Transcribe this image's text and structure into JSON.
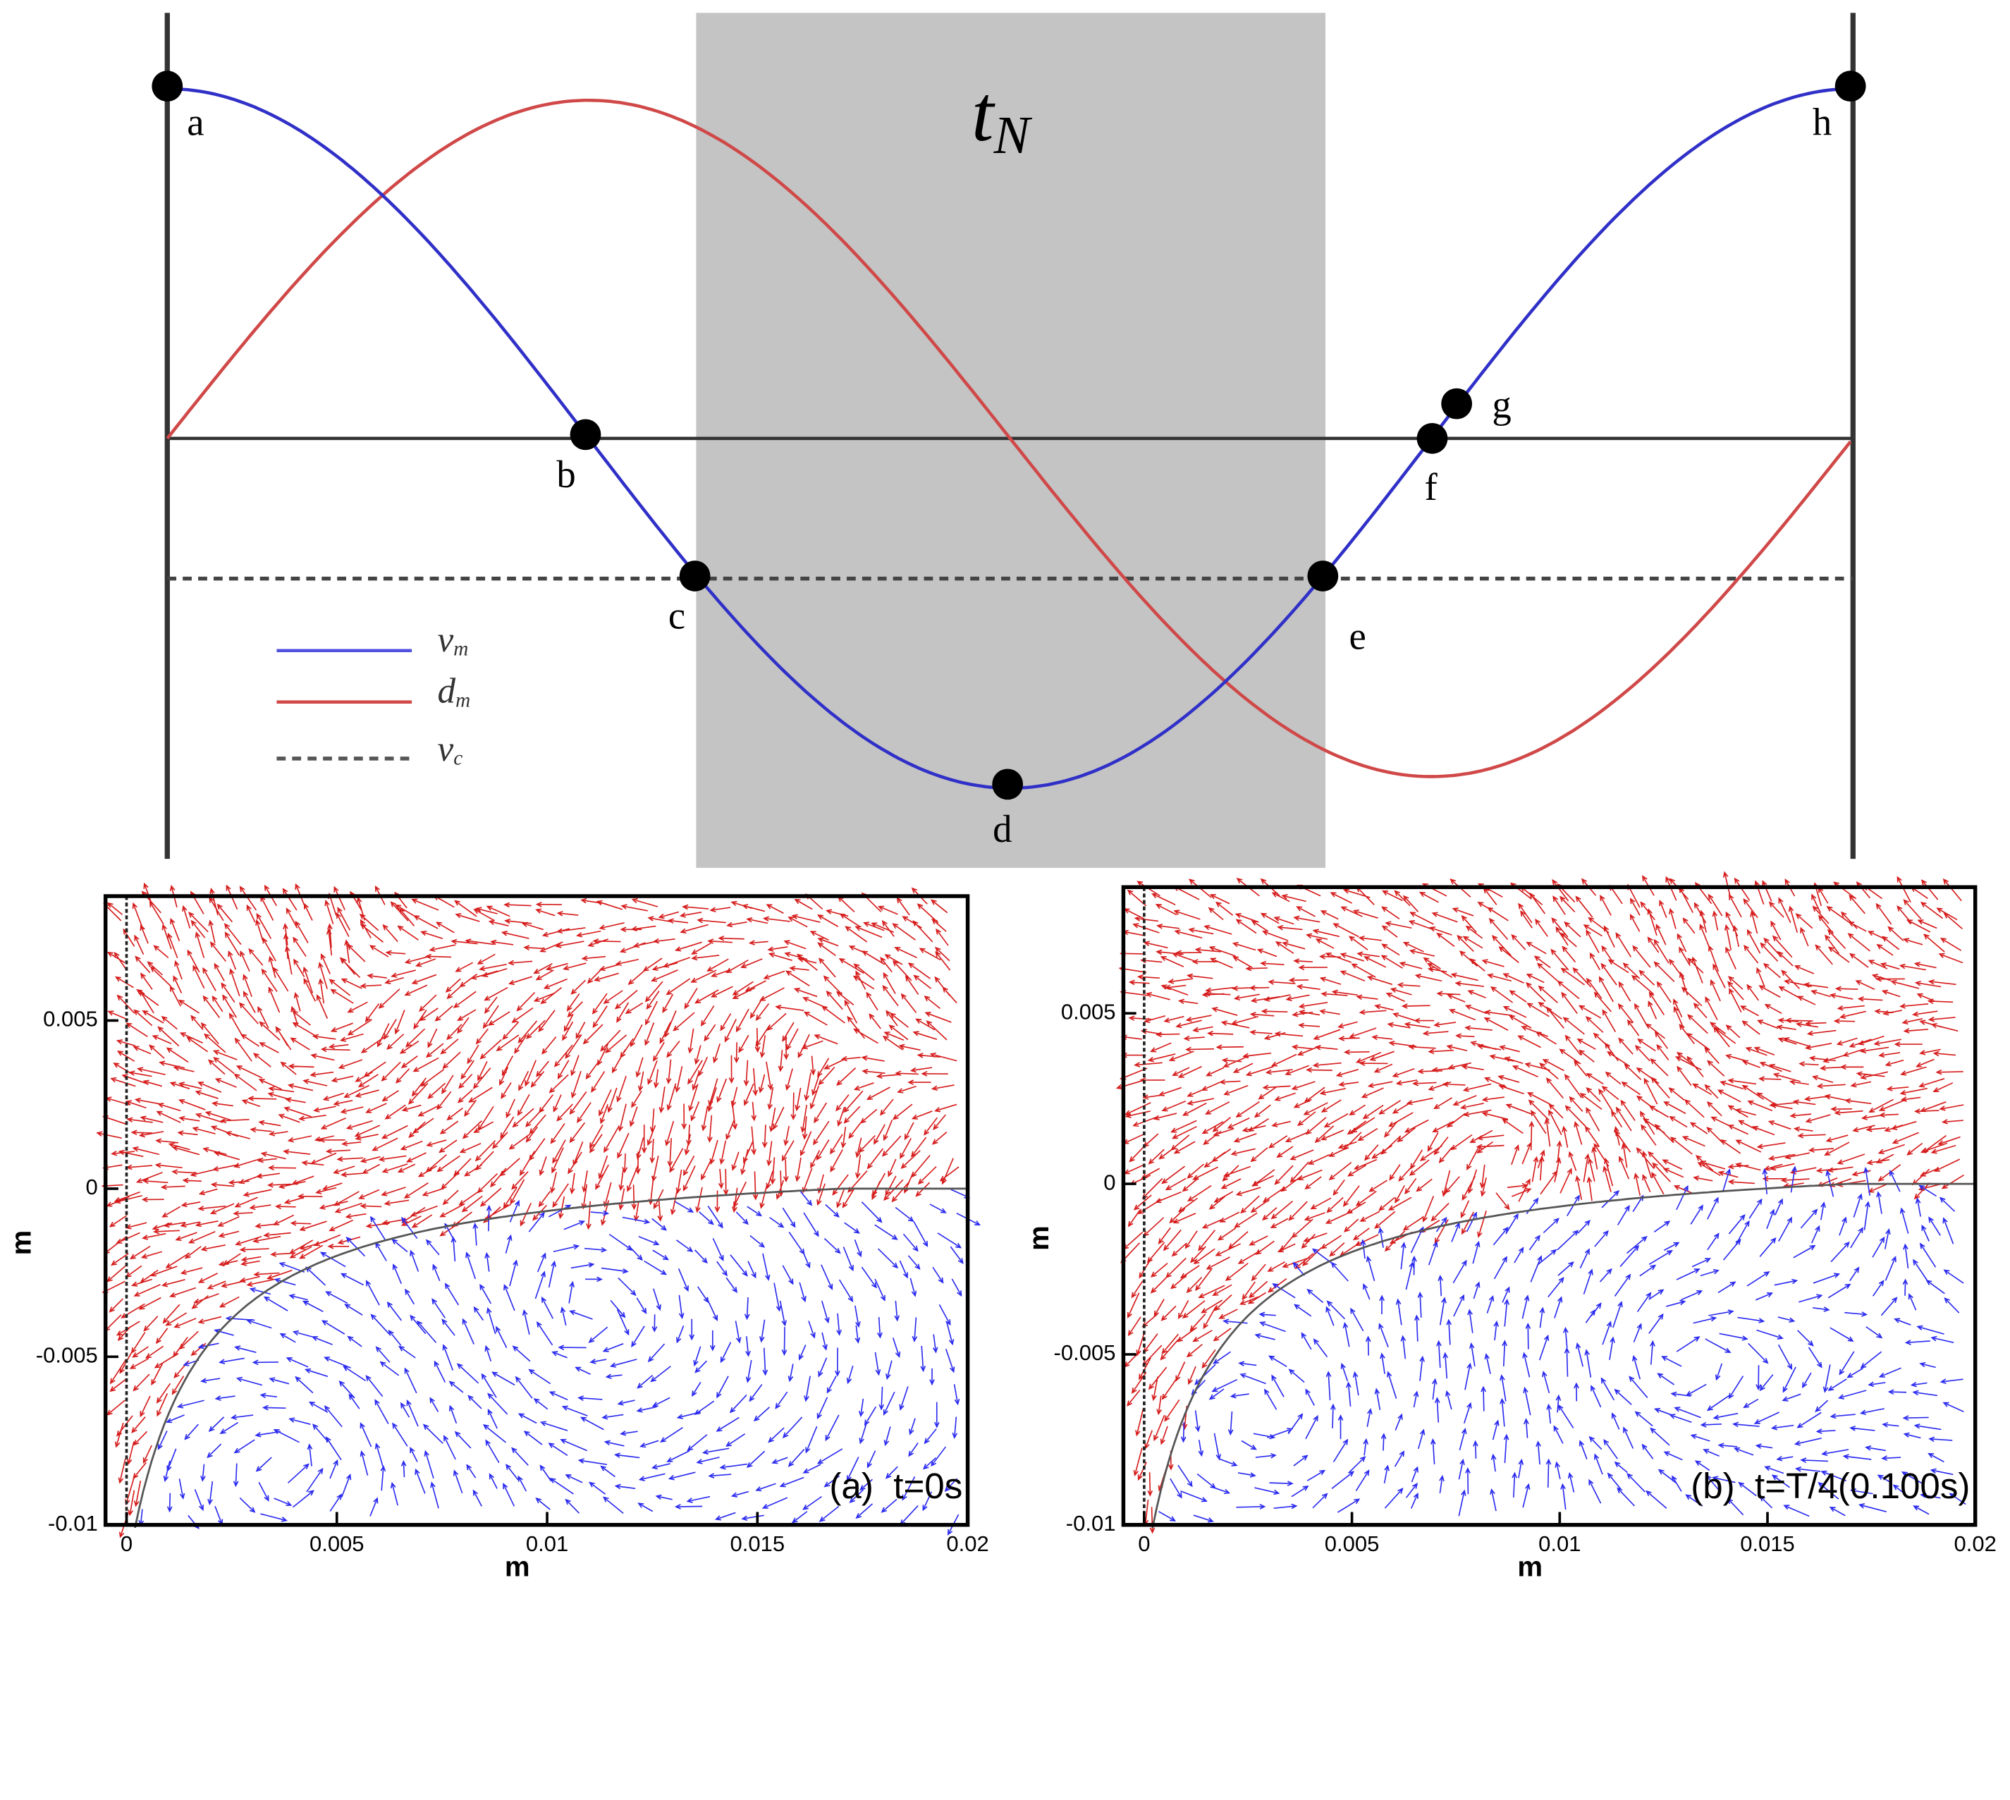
{
  "diagram": {
    "shaded_label": "t",
    "shaded_label_sub": "N",
    "points": [
      "a",
      "b",
      "c",
      "d",
      "e",
      "f",
      "g",
      "h"
    ],
    "legend": [
      {
        "symbol": "v",
        "subscript": "m"
      },
      {
        "symbol": "d",
        "subscript": "m"
      },
      {
        "symbol": "v",
        "subscript": "c"
      }
    ]
  },
  "chart_data": [
    {
      "type": "quiver",
      "annotation": "(a)  t=0s",
      "xlabel": "m",
      "ylabel": "m",
      "xlim": [
        -0.0005,
        0.02
      ],
      "ylim": [
        -0.01,
        0.0087
      ],
      "xticks": [
        0,
        0.005,
        0.01,
        0.015,
        0.02
      ],
      "yticks": [
        -0.01,
        -0.005,
        0,
        0.005
      ]
    },
    {
      "type": "quiver",
      "annotation": "(b)  t=T/4(0.100s)",
      "xlabel": "m",
      "ylabel": "m",
      "xlim": [
        -0.0005,
        0.02
      ],
      "ylim": [
        -0.01,
        0.0087
      ],
      "xticks": [
        0,
        0.005,
        0.01,
        0.015,
        0.02
      ],
      "yticks": [
        -0.01,
        -0.005,
        0,
        0.005
      ]
    }
  ]
}
